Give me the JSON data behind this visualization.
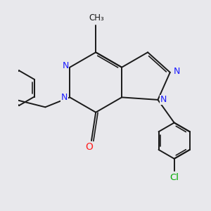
{
  "bg_color": "#e8e8ec",
  "bond_color": "#1a1a1a",
  "N_color": "#1a1aff",
  "O_color": "#ff2020",
  "F_color": "#ff40ff",
  "Cl_color": "#00aa00",
  "figsize": [
    3.0,
    3.0
  ],
  "dpi": 100,
  "xlim": [
    -1.6,
    1.9
  ],
  "ylim": [
    -2.0,
    1.7
  ]
}
